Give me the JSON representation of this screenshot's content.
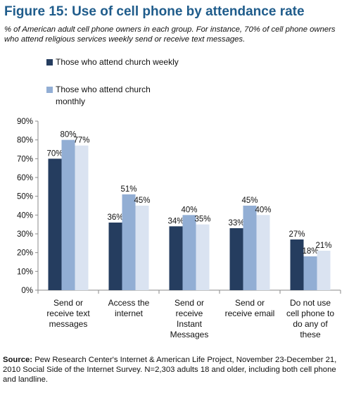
{
  "figure": {
    "title": "Figure 15: Use of cell phone by attendance rate",
    "subtitle": "% of American adult cell phone owners in each group. For instance, 70% of cell phone owners who attend religious services weekly send or receive text messages.",
    "source_label": "Source:",
    "source_text": "Pew Research Center's Internet & American Life Project, November 23-December 21, 2010 Social Side of the Internet Survey. N=2,303 adults 18 and older, including both cell phone and landline."
  },
  "chart_data": {
    "type": "bar",
    "categories": [
      [
        "Send or",
        "receive text",
        "messages"
      ],
      [
        "Access the",
        "internet"
      ],
      [
        "Send or",
        "receive",
        "Instant",
        "Messages"
      ],
      [
        "Send or",
        "receive email"
      ],
      [
        "Do not use",
        "cell phone to",
        "do any of",
        "these"
      ]
    ],
    "series": [
      {
        "name": "Those who attend church weekly",
        "values": [
          70,
          36,
          34,
          33,
          27
        ],
        "color": "#253d5f"
      },
      {
        "name": "Those who attend church monthly",
        "values": [
          80,
          51,
          40,
          45,
          18
        ],
        "color": "#92aed4"
      },
      {
        "name": "",
        "values": [
          77,
          45,
          35,
          40,
          21
        ],
        "color": "#dae3f1"
      }
    ],
    "ylim": [
      0,
      90
    ],
    "yticks": [
      "0%",
      "10%",
      "20%",
      "30%",
      "40%",
      "50%",
      "60%",
      "70%",
      "80%",
      "90%"
    ],
    "value_suffix": "%",
    "grid": false,
    "legend_position": "top-left"
  }
}
